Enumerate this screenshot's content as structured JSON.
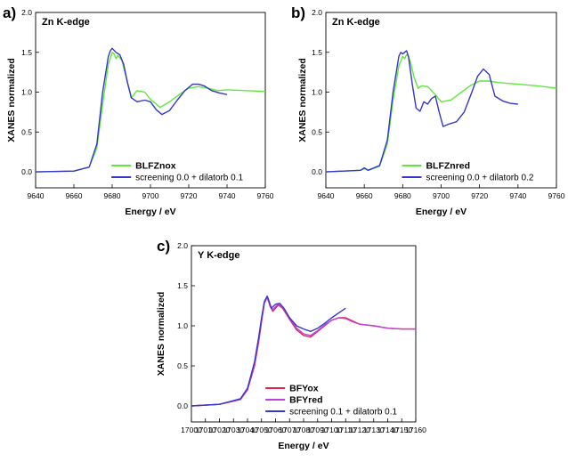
{
  "colors": {
    "green": "#5ee83a",
    "blue": "#3636c8",
    "red": "#e8204a",
    "magenta": "#c040d8"
  },
  "chart_data": [
    {
      "type": "line",
      "label": "a)",
      "title": "Zn K-edge",
      "xlabel": "Energy / eV",
      "ylabel": "XANES normalized",
      "xlim": [
        9640,
        9760
      ],
      "ylim": [
        -0.2,
        2.0
      ],
      "xticks": [
        "9640",
        "9660",
        "9680",
        "9700",
        "9720",
        "9740",
        "9760"
      ],
      "yticks": [
        "0.0",
        "0.5",
        "1.0",
        "1.5",
        "2.0"
      ],
      "legend_position": "bottom-right",
      "series": [
        {
          "name": "BLFZnox",
          "color": "green",
          "bold": true,
          "x": [
            9640,
            9660,
            9668,
            9672,
            9675,
            9678,
            9680,
            9681,
            9682,
            9683,
            9685,
            9688,
            9690,
            9693,
            9697,
            9700,
            9705,
            9710,
            9715,
            9720,
            9725,
            9730,
            9735,
            9740,
            9750,
            9760
          ],
          "y": [
            0.0,
            0.01,
            0.06,
            0.3,
            0.85,
            1.35,
            1.5,
            1.48,
            1.42,
            1.46,
            1.4,
            1.12,
            0.93,
            1.02,
            1.0,
            0.91,
            0.81,
            0.88,
            0.97,
            1.05,
            1.07,
            1.05,
            1.02,
            1.03,
            1.02,
            1.01
          ]
        },
        {
          "name": "screening 0.0 + dilatorb 0.1",
          "color": "blue",
          "bold": false,
          "x": [
            9640,
            9660,
            9668,
            9672,
            9675,
            9678,
            9679,
            9680,
            9682,
            9684,
            9686,
            9688,
            9690,
            9693,
            9697,
            9700,
            9703,
            9706,
            9710,
            9714,
            9718,
            9722,
            9725,
            9728,
            9732,
            9736,
            9740
          ],
          "y": [
            0.0,
            0.01,
            0.06,
            0.35,
            1.0,
            1.45,
            1.52,
            1.55,
            1.5,
            1.47,
            1.35,
            1.12,
            0.93,
            0.88,
            0.9,
            0.88,
            0.78,
            0.72,
            0.77,
            0.9,
            1.02,
            1.1,
            1.1,
            1.08,
            1.02,
            0.99,
            0.97
          ]
        }
      ]
    },
    {
      "type": "line",
      "label": "b)",
      "title": "Zn K-edge",
      "xlabel": "Energy / eV",
      "ylabel": "XANES normalized",
      "xlim": [
        9640,
        9760
      ],
      "ylim": [
        -0.2,
        2.0
      ],
      "xticks": [
        "9640",
        "9660",
        "9680",
        "9700",
        "9720",
        "9740",
        "9760"
      ],
      "yticks": [
        "0.0",
        "0.5",
        "1.0",
        "1.5",
        "2.0"
      ],
      "legend_position": "bottom-right",
      "series": [
        {
          "name": "BLFZnred",
          "color": "green",
          "bold": true,
          "x": [
            9640,
            9658,
            9660,
            9662,
            9668,
            9672,
            9675,
            9678,
            9680,
            9681,
            9682,
            9683,
            9684,
            9686,
            9688,
            9690,
            9693,
            9697,
            9700,
            9705,
            9710,
            9715,
            9720,
            9725,
            9730,
            9740,
            9750,
            9760
          ],
          "y": [
            0.0,
            0.02,
            0.04,
            0.02,
            0.07,
            0.35,
            0.9,
            1.33,
            1.45,
            1.42,
            1.47,
            1.45,
            1.38,
            1.18,
            1.05,
            1.08,
            1.07,
            0.97,
            0.88,
            0.9,
            0.99,
            1.08,
            1.14,
            1.14,
            1.12,
            1.1,
            1.08,
            1.05
          ]
        },
        {
          "name": "screening 0.0 + dilatorb 0.2",
          "color": "blue",
          "bold": false,
          "x": [
            9640,
            9658,
            9660,
            9662,
            9668,
            9672,
            9675,
            9678,
            9679,
            9680,
            9681,
            9682,
            9683,
            9685,
            9687,
            9689,
            9691,
            9693,
            9695,
            9697,
            9699,
            9701,
            9704,
            9708,
            9712,
            9716,
            9719,
            9722,
            9725,
            9728,
            9732,
            9736,
            9740
          ],
          "y": [
            0.0,
            0.02,
            0.05,
            0.02,
            0.08,
            0.4,
            1.0,
            1.45,
            1.5,
            1.48,
            1.5,
            1.52,
            1.45,
            1.1,
            0.8,
            0.76,
            0.88,
            0.85,
            0.92,
            0.95,
            0.75,
            0.57,
            0.6,
            0.63,
            0.75,
            1.0,
            1.2,
            1.29,
            1.22,
            0.95,
            0.89,
            0.86,
            0.85
          ]
        }
      ]
    },
    {
      "type": "line",
      "label": "c)",
      "title": "Y K-edge",
      "xlabel": "Energy / eV",
      "ylabel": "XANES normalized",
      "xlim": [
        17000,
        17160
      ],
      "ylim": [
        -0.2,
        2.0
      ],
      "xticks": [
        "17000",
        "17010",
        "17020",
        "17030",
        "17040",
        "17050",
        "17060",
        "17070",
        "17080",
        "17090",
        "17100",
        "17110",
        "17120",
        "17130",
        "17140",
        "17150",
        "17160"
      ],
      "yticks": [
        "0.0",
        "0.5",
        "1.0",
        "1.5",
        "2.0"
      ],
      "legend_position": "bottom-right",
      "series": [
        {
          "name": "BFYox",
          "color": "red",
          "bold": true,
          "x": [
            17000,
            17020,
            17035,
            17040,
            17045,
            17048,
            17050,
            17052,
            17054,
            17056,
            17058,
            17060,
            17062,
            17065,
            17070,
            17075,
            17080,
            17085,
            17090,
            17095,
            17100,
            17105,
            17110,
            17115,
            17120,
            17125,
            17130,
            17140,
            17150,
            17160
          ],
          "y": [
            0.0,
            0.02,
            0.08,
            0.2,
            0.5,
            0.8,
            1.05,
            1.28,
            1.36,
            1.25,
            1.18,
            1.22,
            1.26,
            1.22,
            1.08,
            0.95,
            0.88,
            0.86,
            0.93,
            1.0,
            1.07,
            1.1,
            1.1,
            1.06,
            1.02,
            1.01,
            1.0,
            0.97,
            0.96,
            0.96
          ]
        },
        {
          "name": "BFYred",
          "color": "magenta",
          "bold": true,
          "x": [
            17000,
            17020,
            17035,
            17040,
            17045,
            17048,
            17050,
            17052,
            17054,
            17056,
            17058,
            17060,
            17062,
            17065,
            17070,
            17075,
            17080,
            17085,
            17090,
            17095,
            17100,
            17105,
            17110,
            17115,
            17120,
            17125,
            17130,
            17140,
            17150,
            17160
          ],
          "y": [
            0.0,
            0.02,
            0.08,
            0.21,
            0.52,
            0.82,
            1.07,
            1.29,
            1.35,
            1.26,
            1.2,
            1.24,
            1.27,
            1.23,
            1.09,
            0.97,
            0.9,
            0.88,
            0.94,
            1.01,
            1.07,
            1.1,
            1.09,
            1.05,
            1.02,
            1.01,
            1.0,
            0.97,
            0.96,
            0.96
          ]
        },
        {
          "name": "screening 0.1 + dilatorb 0.1",
          "color": "blue",
          "bold": false,
          "x": [
            17000,
            17020,
            17035,
            17040,
            17045,
            17048,
            17050,
            17052,
            17054,
            17055,
            17057,
            17060,
            17063,
            17066,
            17070,
            17075,
            17080,
            17085,
            17090,
            17095,
            17100,
            17105,
            17110
          ],
          "y": [
            0.0,
            0.02,
            0.09,
            0.22,
            0.55,
            0.86,
            1.1,
            1.3,
            1.37,
            1.33,
            1.22,
            1.27,
            1.28,
            1.22,
            1.1,
            1.0,
            0.96,
            0.93,
            0.97,
            1.03,
            1.1,
            1.16,
            1.22
          ]
        }
      ]
    }
  ]
}
